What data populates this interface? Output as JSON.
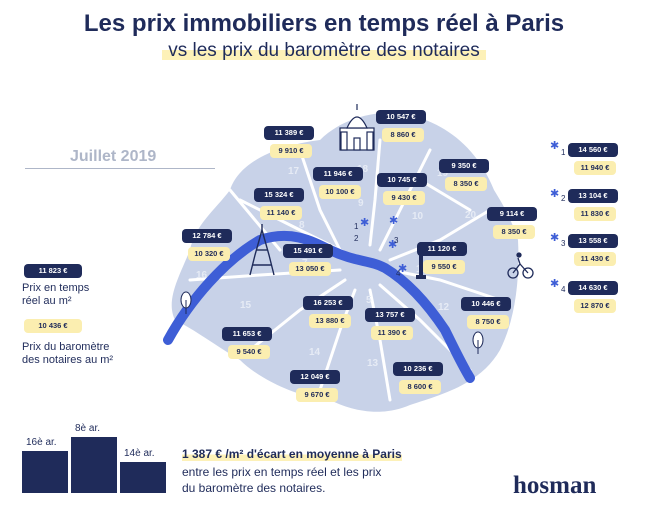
{
  "title": "Les prix immobiliers en temps réel à Paris",
  "subtitle": "vs les prix du baromètre des notaires",
  "date": "Juillet 2019",
  "colors": {
    "navy": "#1f2b5a",
    "yellow": "#fbeeb0",
    "map": "#c8d2e8",
    "seine": "#3e5ed6"
  },
  "legend": {
    "real_example": "11 823 €",
    "real_label_1": "Prix en temps",
    "real_label_2": "réel au m²",
    "notary_example": "10 436 €",
    "notary_label_1": "Prix du baromètre",
    "notary_label_2": "des notaires au m²"
  },
  "arrondissements": [
    {
      "n": "1",
      "real": "14 560 €",
      "notary": "11 940 €"
    },
    {
      "n": "2",
      "real": "13 104 €",
      "notary": "11 830 €"
    },
    {
      "n": "3",
      "real": "13 558 €",
      "notary": "11 430 €"
    },
    {
      "n": "4",
      "real": "14 630 €",
      "notary": "12 870 €"
    },
    {
      "n": "5",
      "real": "13 757 €",
      "notary": "11 390 €"
    },
    {
      "n": "6",
      "real": "16 253 €",
      "notary": "13 880 €"
    },
    {
      "n": "7",
      "real": "15 491 €",
      "notary": "13 050 €"
    },
    {
      "n": "8",
      "real": "15 324 €",
      "notary": "11 140 €"
    },
    {
      "n": "9",
      "real": "11 946 €",
      "notary": "10 100 €"
    },
    {
      "n": "10",
      "real": "10 745 €",
      "notary": "9 430 €"
    },
    {
      "n": "11",
      "real": "11 120 €",
      "notary": "9 550 €"
    },
    {
      "n": "12",
      "real": "10 446 €",
      "notary": "8 750 €"
    },
    {
      "n": "13",
      "real": "10 236 €",
      "notary": "8 600 €"
    },
    {
      "n": "14",
      "real": "12 049 €",
      "notary": "9 670 €"
    },
    {
      "n": "15",
      "real": "11 653 €",
      "notary": "9 540 €"
    },
    {
      "n": "16",
      "real": "12 784 €",
      "notary": "10 320 €"
    },
    {
      "n": "17",
      "real": "11 389 €",
      "notary": "9 910 €"
    },
    {
      "n": "18",
      "real": "10 547 €",
      "notary": "8 860 €"
    },
    {
      "n": "19",
      "real": "9 350 €",
      "notary": "8 350 €"
    },
    {
      "n": "20",
      "real": "9 114 €",
      "notary": "8 350 €"
    }
  ],
  "bars": [
    {
      "label": "16è ar.",
      "rank": 2
    },
    {
      "label": "8è ar.",
      "rank": 1
    },
    {
      "label": "14è ar.",
      "rank": 3
    }
  ],
  "headline": "1 387 € /m² d'écart en moyenne à Paris",
  "body_line1": "entre les prix en temps réel et les prix",
  "body_line2": "du baromètre des notaires.",
  "logo": "hosman",
  "icons": [
    "sacre-coeur-icon",
    "eiffel-tower-icon",
    "column-icon",
    "cyclist-icon",
    "tree-icon",
    "star-icon"
  ]
}
